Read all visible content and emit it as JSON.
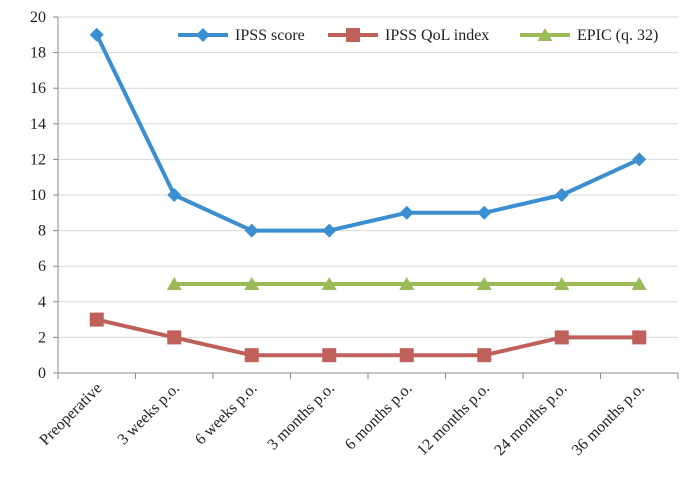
{
  "chart_data": {
    "type": "line",
    "categories": [
      "Preoperative",
      "3 weeks p.o.",
      "6 weeks p.o.",
      "3 months p.o.",
      "6 months p.o.",
      "12 months p.o.",
      "24 months p.o.",
      "36 months p.o."
    ],
    "series": [
      {
        "name": "IPSS score",
        "color": "#3b8ed0",
        "marker": "diamond",
        "values": [
          19,
          10,
          8,
          8,
          9,
          9,
          10,
          12
        ]
      },
      {
        "name": "IPSS QoL index",
        "color": "#c0605b",
        "marker": "square",
        "values": [
          3,
          2,
          1,
          1,
          1,
          1,
          2,
          2
        ]
      },
      {
        "name": "EPIC (q. 32)",
        "color": "#9bbb59",
        "marker": "triangle",
        "values": [
          null,
          5,
          5,
          5,
          5,
          5,
          5,
          5
        ]
      }
    ],
    "ylim": [
      0,
      20
    ],
    "yticks": [
      0,
      2,
      4,
      6,
      8,
      10,
      12,
      14,
      16,
      18,
      20
    ],
    "grid": true,
    "legend": "top-right"
  }
}
